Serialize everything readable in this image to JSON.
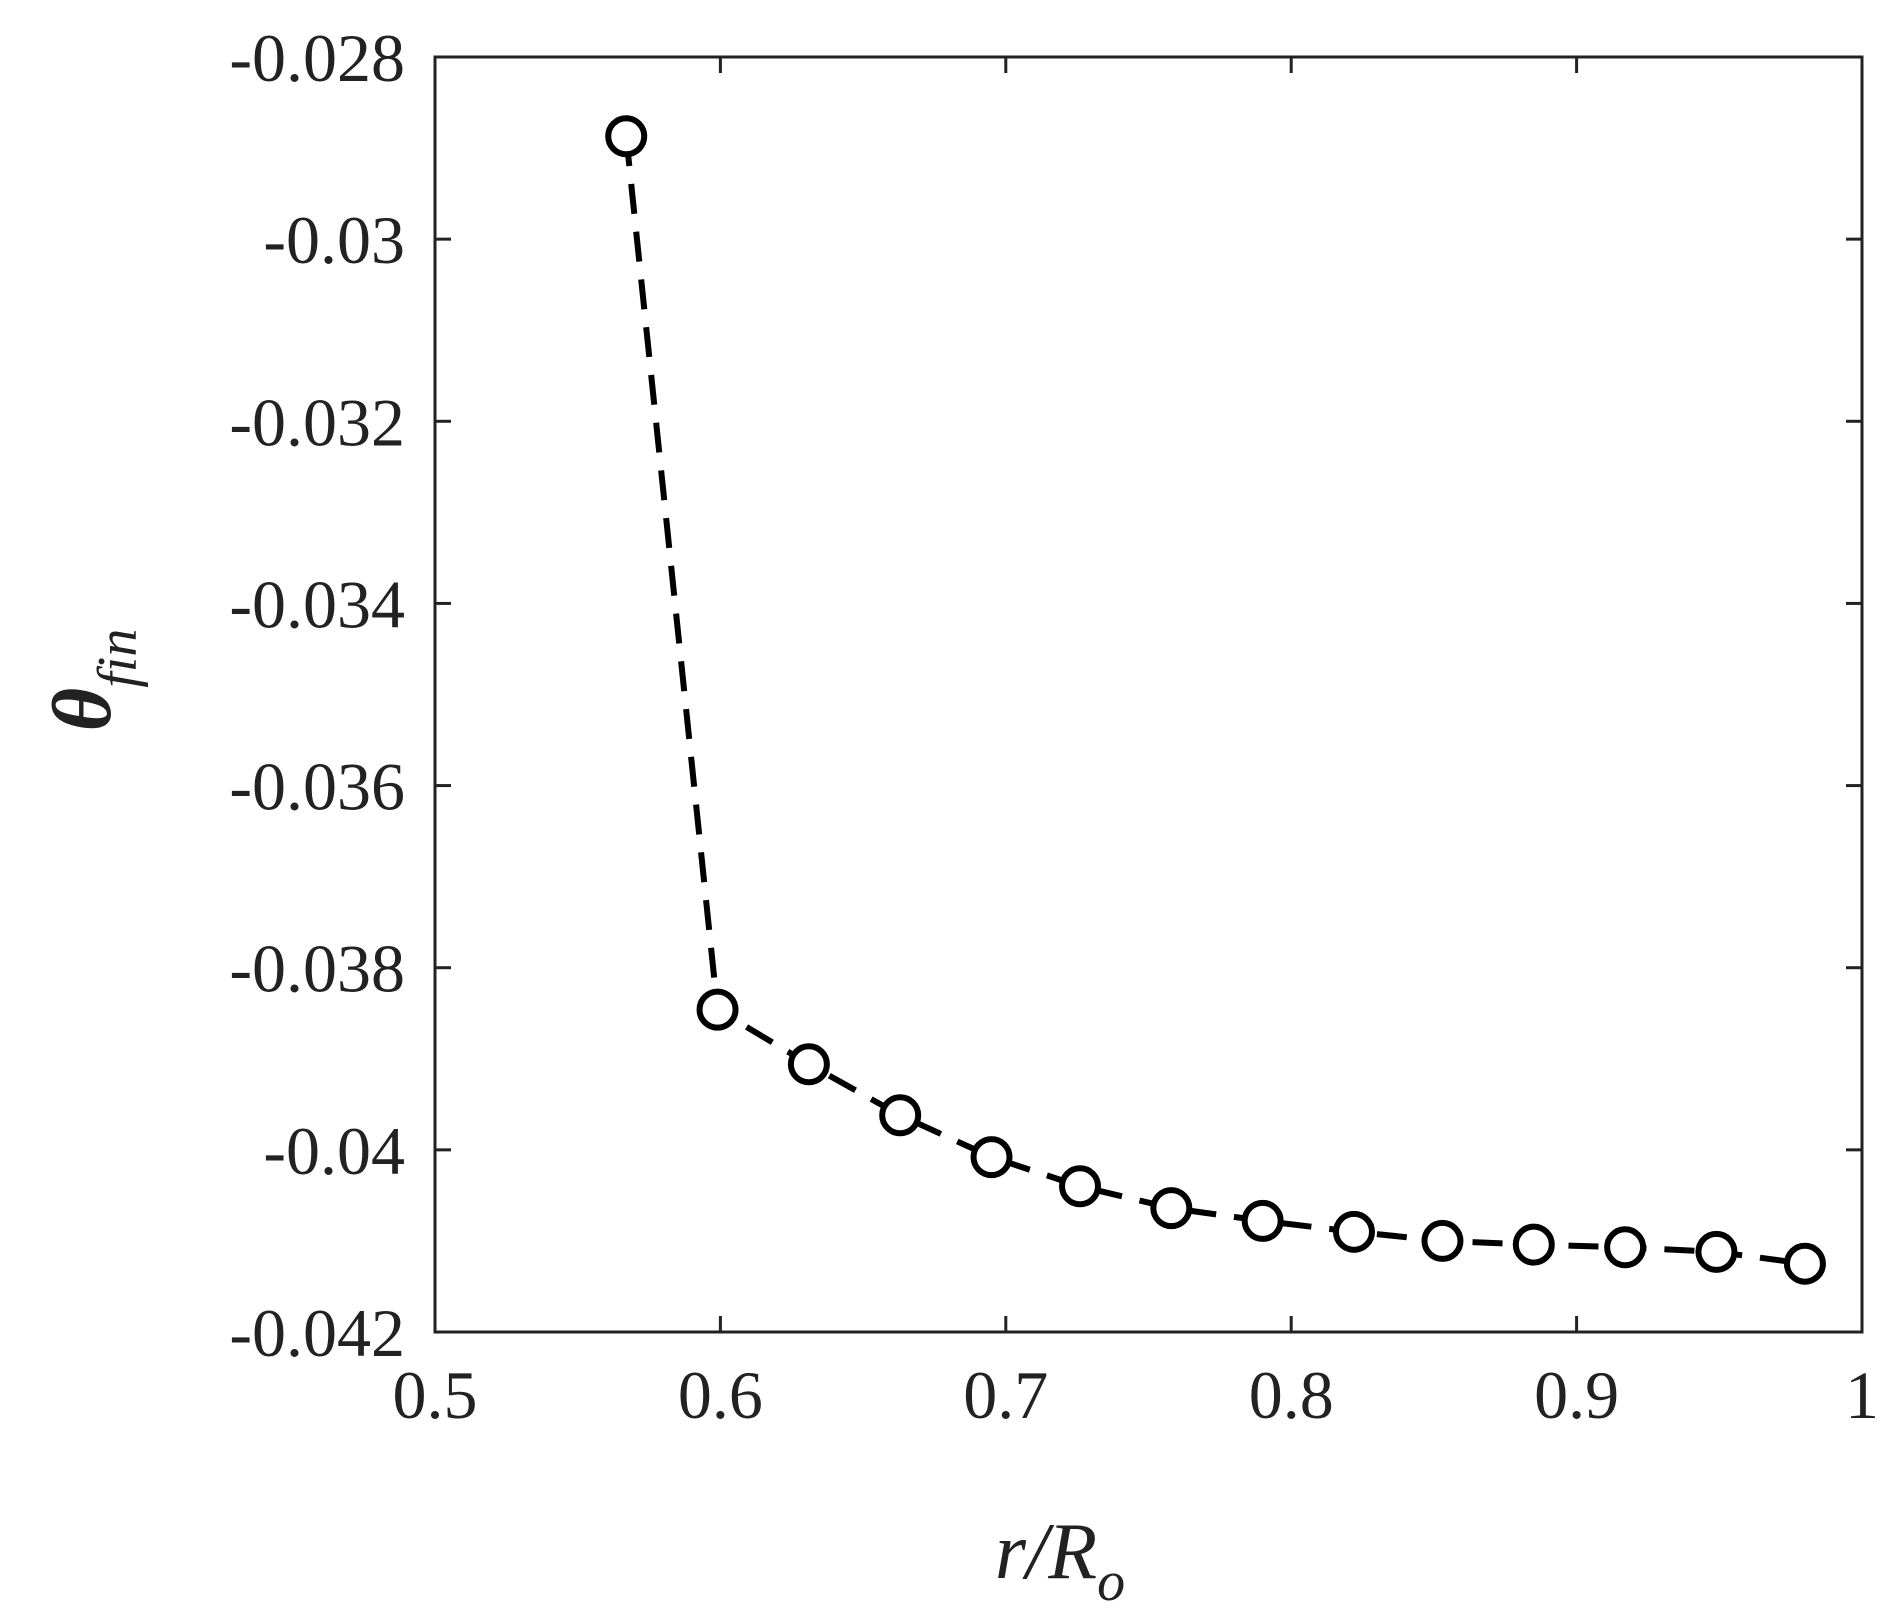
{
  "chart_data": {
    "type": "line",
    "title": "",
    "xlabel": {
      "main": "r/R",
      "sub": "o"
    },
    "ylabel": {
      "main": "θ",
      "sub": "fin"
    },
    "xlim": [
      0.5,
      1
    ],
    "ylim": [
      -0.042,
      -0.028
    ],
    "xticks": [
      "0.5",
      "0.6",
      "0.7",
      "0.8",
      "0.9",
      "1"
    ],
    "yticks": [
      "-0.028",
      "-0.03",
      "-0.032",
      "-0.034",
      "-0.036",
      "-0.038",
      "-0.04",
      "-0.042"
    ],
    "grid": false,
    "series": [
      {
        "line_style": "dashed",
        "marker": "open-circle",
        "color": "#000000",
        "x": [
          0.567,
          0.599,
          0.631,
          0.663,
          0.695,
          0.726,
          0.758,
          0.79,
          0.822,
          0.853,
          0.885,
          0.917,
          0.949,
          0.98
        ],
        "y": [
          -0.02887,
          -0.03846,
          -0.03906,
          -0.03962,
          -0.04008,
          -0.0404,
          -0.04064,
          -0.04078,
          -0.0409,
          -0.041,
          -0.04104,
          -0.04107,
          -0.04112,
          -0.04125
        ]
      }
    ]
  }
}
